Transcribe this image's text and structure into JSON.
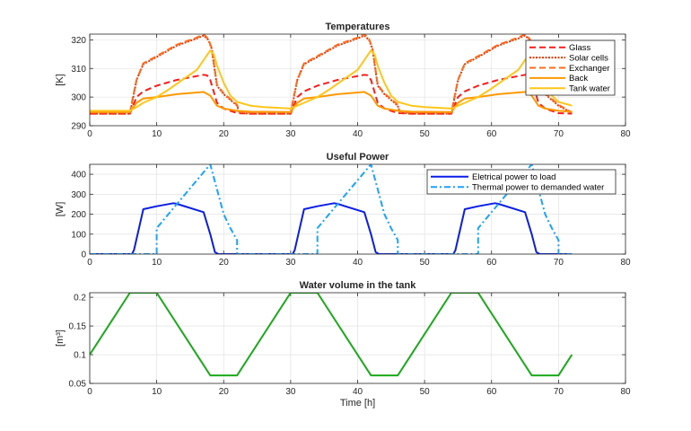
{
  "chart_data": [
    {
      "type": "line",
      "title": "Temperatures",
      "xlabel": "",
      "ylabel": "[K]",
      "xlim": [
        0,
        80
      ],
      "ylim": [
        290,
        322
      ],
      "xticks": [
        "0",
        "10",
        "20",
        "30",
        "40",
        "50",
        "60",
        "70",
        "80"
      ],
      "yticks": [
        "290",
        "300",
        "310",
        "320"
      ],
      "grid": true,
      "legend_position": "top-right",
      "series": [
        {
          "name": "Glass",
          "color": "#ff1a1a",
          "style": "dashed",
          "x": [
            0,
            6,
            6.3,
            7,
            8,
            10,
            13,
            17,
            17.5,
            18,
            19,
            20,
            22,
            24,
            30,
            30.3,
            31,
            32,
            34,
            37,
            41,
            41.5,
            42,
            43,
            44,
            46,
            48,
            54,
            54.3,
            55,
            56,
            58,
            61,
            65,
            65.5,
            66,
            67,
            68,
            70,
            72
          ],
          "y": [
            294.2,
            294.2,
            296,
            300,
            302,
            304,
            306,
            307.8,
            307.6,
            306,
            298,
            296,
            294.4,
            294.2,
            294.2,
            296,
            300,
            302,
            304,
            306,
            307.8,
            307.6,
            306,
            298,
            296,
            294.4,
            294.2,
            294.2,
            296,
            300,
            302,
            304,
            306,
            307.8,
            307.6,
            306,
            298,
            296,
            294.4,
            294.2
          ]
        },
        {
          "name": "Solar cells",
          "color": "#e63300",
          "style": "dotted",
          "x": [
            0,
            6,
            6.5,
            7,
            8,
            10,
            13,
            16,
            17,
            17.7,
            18.2,
            19,
            20,
            22,
            22.3,
            24,
            30,
            30.5,
            31,
            32,
            34,
            37,
            40,
            41,
            41.7,
            42.2,
            43,
            44,
            46,
            46.3,
            48,
            54,
            54.5,
            55,
            56,
            58,
            61,
            64,
            65,
            65.7,
            66.2,
            67,
            68,
            70,
            72
          ],
          "y": [
            294.2,
            294.2,
            300,
            306,
            311.5,
            314,
            318,
            320.5,
            321.5,
            320,
            317,
            304,
            301,
            297,
            294.5,
            294.2,
            294.2,
            300,
            306,
            311.5,
            314,
            318,
            320.5,
            321.5,
            320,
            317,
            304,
            301,
            297,
            294.5,
            294.2,
            294.2,
            300,
            306,
            311.5,
            314,
            318,
            320.5,
            321.5,
            320,
            317,
            304,
            301,
            297,
            294.5
          ]
        },
        {
          "name": "Exchanger",
          "color": "#ff6a1a",
          "style": "dashed",
          "x": [
            0,
            6,
            6.5,
            7,
            8,
            10,
            13,
            16,
            17,
            17.7,
            18.2,
            19,
            20,
            22,
            22.3,
            24,
            30,
            30.5,
            31,
            32,
            34,
            37,
            40,
            41,
            41.7,
            42.2,
            43,
            44,
            46,
            46.3,
            48,
            54,
            54.5,
            55,
            56,
            58,
            61,
            64,
            65,
            65.7,
            66.2,
            67,
            68,
            70,
            72
          ],
          "y": [
            294.6,
            294.6,
            300.5,
            306,
            311.8,
            314.3,
            318.3,
            320.8,
            322,
            320.3,
            317.3,
            304.3,
            301.3,
            297.3,
            294.8,
            294.6,
            294.6,
            300.5,
            306,
            311.8,
            314.3,
            318.3,
            320.8,
            322,
            320.3,
            317.3,
            304.3,
            301.3,
            297.3,
            294.8,
            294.6,
            294.6,
            300.5,
            306,
            311.8,
            314.3,
            318.3,
            320.8,
            322,
            320.3,
            317.3,
            304.3,
            301.3,
            297.3,
            294.6
          ]
        },
        {
          "name": "Back",
          "color": "#ff9900",
          "style": "solid",
          "x": [
            0,
            6,
            7,
            8,
            10,
            13,
            17,
            18,
            19,
            20,
            22,
            24,
            30,
            31,
            32,
            34,
            37,
            41,
            42,
            43,
            44,
            46,
            48,
            54,
            55,
            56,
            58,
            61,
            65,
            66,
            67,
            68,
            70,
            72
          ],
          "y": [
            294.8,
            294.8,
            298,
            299.5,
            300,
            301,
            301.8,
            300.5,
            297,
            296,
            295.2,
            294.9,
            294.8,
            298,
            299.5,
            300,
            301,
            301.8,
            300.5,
            297,
            296,
            295.2,
            294.9,
            294.8,
            298,
            299.5,
            300,
            301,
            301.8,
            300.5,
            297,
            296,
            295.2,
            294.9
          ]
        },
        {
          "name": "Tank water",
          "color": "#ffc61a",
          "style": "solid",
          "x": [
            0,
            6,
            7,
            8,
            10,
            12,
            14,
            16,
            18,
            18.5,
            19,
            20,
            21,
            22,
            24,
            26,
            30,
            31,
            32,
            34,
            36,
            38,
            40,
            42,
            42.5,
            43,
            44,
            45,
            46,
            48,
            50,
            54,
            55,
            56,
            58,
            60,
            62,
            64,
            66,
            66.5,
            67,
            68,
            69,
            70,
            72
          ],
          "y": [
            295.2,
            295.2,
            296.5,
            298,
            300,
            303,
            306.3,
            309.5,
            316.3,
            315,
            311,
            305,
            300.5,
            298.3,
            297,
            296.5,
            296,
            297,
            298,
            300,
            303,
            306.3,
            309.5,
            316.3,
            315,
            311,
            305,
            300.5,
            298.3,
            297,
            296.5,
            296,
            297,
            298,
            300,
            303,
            306.3,
            309.5,
            316.3,
            315,
            311,
            305,
            300.5,
            298.3,
            297
          ]
        }
      ]
    },
    {
      "type": "line",
      "title": "Useful Power",
      "xlabel": "",
      "ylabel": "[W]",
      "xlim": [
        0,
        80
      ],
      "ylim": [
        0,
        450
      ],
      "xticks": [
        "0",
        "10",
        "20",
        "30",
        "40",
        "50",
        "60",
        "70",
        "80"
      ],
      "yticks": [
        "0",
        "100",
        "200",
        "300",
        "400"
      ],
      "grid": true,
      "legend_position": "top-right",
      "series": [
        {
          "name": "Eletrical power to load",
          "color": "#0a1ee6",
          "style": "solid",
          "x": [
            0,
            6.3,
            6.6,
            8,
            10,
            12.5,
            13,
            17,
            18,
            18.7,
            19.2,
            30.3,
            30.6,
            32,
            34,
            36.5,
            37,
            41,
            42,
            42.7,
            43.2,
            54.3,
            54.6,
            56,
            58,
            60.5,
            61,
            65,
            66,
            66.7,
            67.2,
            72
          ],
          "y": [
            0,
            0,
            20,
            225,
            240,
            255,
            252,
            210,
            100,
            10,
            0,
            0,
            20,
            225,
            240,
            255,
            252,
            210,
            100,
            10,
            0,
            0,
            20,
            225,
            240,
            255,
            252,
            210,
            100,
            10,
            0,
            0
          ]
        },
        {
          "name": "Thermal power to demanded water",
          "color": "#1aa3ff",
          "style": "dashdot",
          "x": [
            0,
            10,
            10,
            13,
            18,
            20,
            21,
            22,
            22,
            34,
            34,
            37,
            42,
            44,
            45,
            46,
            46,
            58,
            58,
            61,
            66,
            68,
            69,
            70,
            70,
            72
          ],
          "y": [
            0,
            0,
            130,
            250,
            450,
            200,
            130,
            70,
            0,
            0,
            130,
            250,
            450,
            200,
            130,
            70,
            0,
            0,
            130,
            250,
            450,
            200,
            130,
            70,
            0,
            0
          ]
        }
      ]
    },
    {
      "type": "line",
      "title": "Water volume in the tank",
      "xlabel": "Time [h]",
      "ylabel": "[m³]",
      "xlim": [
        0,
        80
      ],
      "ylim": [
        0.05,
        0.208
      ],
      "xticks": [
        "0",
        "10",
        "20",
        "30",
        "40",
        "50",
        "60",
        "70",
        "80"
      ],
      "yticks": [
        "0.05",
        "0.1",
        "0.15",
        "0.2"
      ],
      "grid": true,
      "series": [
        {
          "name": "Water volume",
          "color": "#1aaa1a",
          "style": "solid",
          "x": [
            0,
            6,
            10,
            18,
            22,
            30,
            34,
            42,
            46,
            54,
            58,
            66,
            70,
            72
          ],
          "y": [
            0.1,
            0.208,
            0.208,
            0.064,
            0.064,
            0.208,
            0.208,
            0.064,
            0.064,
            0.208,
            0.208,
            0.064,
            0.064,
            0.1
          ]
        }
      ]
    }
  ]
}
